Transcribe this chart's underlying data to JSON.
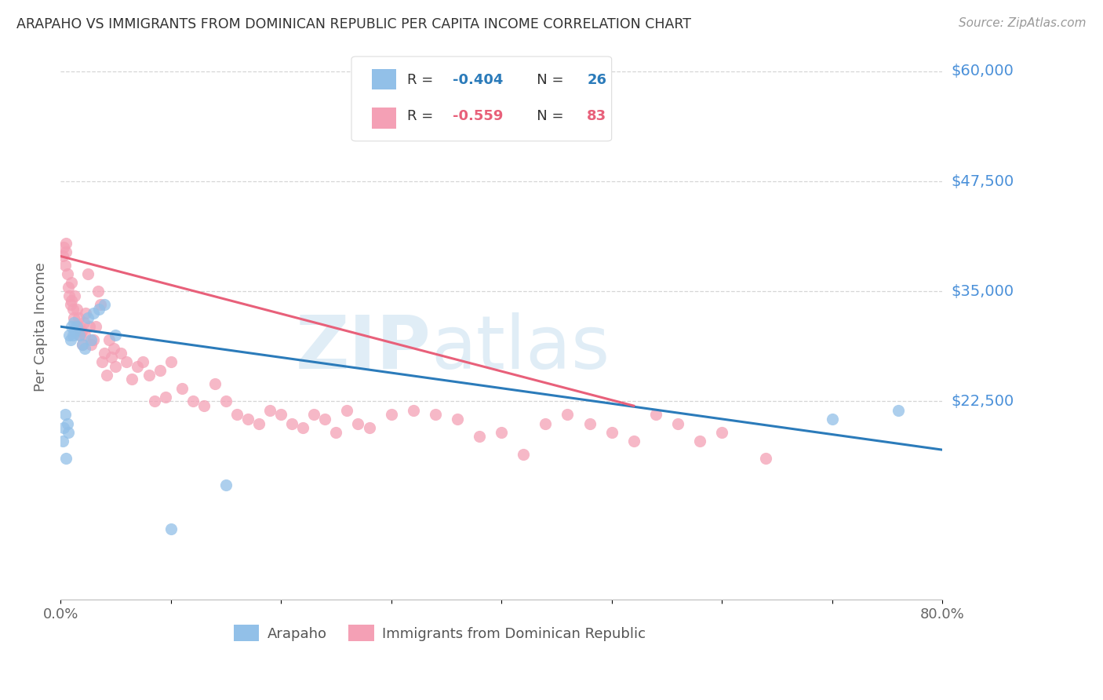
{
  "title": "ARAPAHO VS IMMIGRANTS FROM DOMINICAN REPUBLIC PER CAPITA INCOME CORRELATION CHART",
  "source": "Source: ZipAtlas.com",
  "ylabel": "Per Capita Income",
  "xlim": [
    0,
    0.8
  ],
  "ylim": [
    0,
    62000
  ],
  "yticks": [
    0,
    22500,
    35000,
    47500,
    60000
  ],
  "ytick_labels": [
    "",
    "$22,500",
    "$35,000",
    "$47,500",
    "$60,000"
  ],
  "xticks": [
    0.0,
    0.1,
    0.2,
    0.3,
    0.4,
    0.5,
    0.6,
    0.7,
    0.8
  ],
  "xtick_labels": [
    "0.0%",
    "",
    "",
    "",
    "",
    "",
    "",
    "",
    "80.0%"
  ],
  "arapaho_color": "#92c0e8",
  "dominican_color": "#f4a0b5",
  "arapaho_line_color": "#2b7bba",
  "dominican_line_color": "#e8607a",
  "background_color": "#ffffff",
  "grid_color": "#cccccc",
  "title_color": "#333333",
  "ytick_color": "#4a90d9",
  "source_color": "#999999",
  "arapaho_x": [
    0.002,
    0.003,
    0.004,
    0.005,
    0.006,
    0.007,
    0.008,
    0.009,
    0.01,
    0.011,
    0.012,
    0.013,
    0.015,
    0.017,
    0.02,
    0.022,
    0.025,
    0.028,
    0.03,
    0.035,
    0.04,
    0.05,
    0.1,
    0.15,
    0.7,
    0.76
  ],
  "arapaho_y": [
    18000,
    19500,
    21000,
    16000,
    20000,
    19000,
    30000,
    29500,
    31000,
    30000,
    31500,
    30500,
    31000,
    30000,
    29000,
    28500,
    32000,
    29500,
    32500,
    33000,
    33500,
    30000,
    8000,
    13000,
    20500,
    21500
  ],
  "dominican_x": [
    0.002,
    0.003,
    0.004,
    0.005,
    0.005,
    0.006,
    0.007,
    0.008,
    0.009,
    0.01,
    0.01,
    0.011,
    0.012,
    0.013,
    0.014,
    0.015,
    0.016,
    0.017,
    0.018,
    0.019,
    0.02,
    0.021,
    0.022,
    0.023,
    0.025,
    0.026,
    0.028,
    0.03,
    0.032,
    0.034,
    0.036,
    0.038,
    0.04,
    0.042,
    0.044,
    0.046,
    0.048,
    0.05,
    0.055,
    0.06,
    0.065,
    0.07,
    0.075,
    0.08,
    0.085,
    0.09,
    0.095,
    0.1,
    0.11,
    0.12,
    0.13,
    0.14,
    0.15,
    0.16,
    0.17,
    0.18,
    0.19,
    0.2,
    0.21,
    0.22,
    0.23,
    0.24,
    0.25,
    0.26,
    0.27,
    0.28,
    0.3,
    0.32,
    0.34,
    0.36,
    0.38,
    0.4,
    0.42,
    0.44,
    0.46,
    0.48,
    0.5,
    0.52,
    0.54,
    0.56,
    0.58,
    0.6,
    0.64
  ],
  "dominican_y": [
    39000,
    40000,
    38000,
    40500,
    39500,
    37000,
    35500,
    34500,
    33500,
    34000,
    36000,
    33000,
    32000,
    34500,
    31000,
    33000,
    32000,
    31000,
    30000,
    30500,
    29000,
    31500,
    30000,
    32500,
    37000,
    31000,
    29000,
    29500,
    31000,
    35000,
    33500,
    27000,
    28000,
    25500,
    29500,
    27500,
    28500,
    26500,
    28000,
    27000,
    25000,
    26500,
    27000,
    25500,
    22500,
    26000,
    23000,
    27000,
    24000,
    22500,
    22000,
    24500,
    22500,
    21000,
    20500,
    20000,
    21500,
    21000,
    20000,
    19500,
    21000,
    20500,
    19000,
    21500,
    20000,
    19500,
    21000,
    21500,
    21000,
    20500,
    18500,
    19000,
    16500,
    20000,
    21000,
    20000,
    19000,
    18000,
    21000,
    20000,
    18000,
    19000,
    16000
  ],
  "arapaho_trend_x": [
    0.0,
    0.8
  ],
  "arapaho_trend_y": [
    31000,
    17000
  ],
  "dominican_trend_x": [
    0.0,
    0.52
  ],
  "dominican_trend_y": [
    39000,
    22000
  ],
  "legend_box_color": "#f0f0f0",
  "legend_border_color": "#cccccc"
}
